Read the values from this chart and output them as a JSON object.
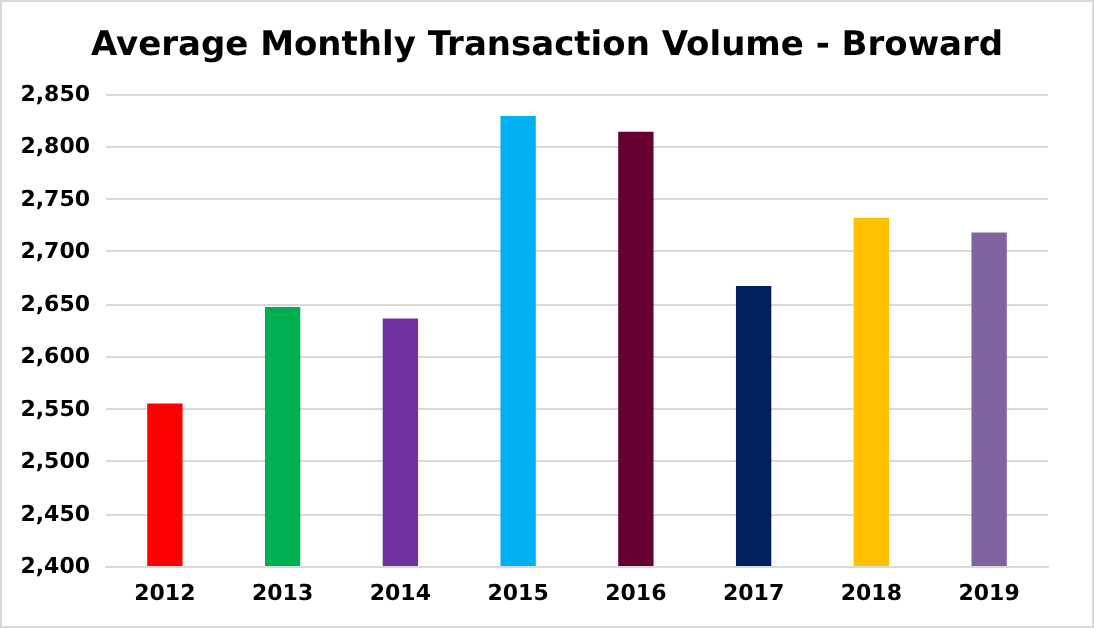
{
  "chart_data": {
    "type": "bar",
    "title": "Average Monthly Transaction Volume - Broward",
    "categories": [
      "2012",
      "2013",
      "2014",
      "2015",
      "2016",
      "2017",
      "2018",
      "2019"
    ],
    "values": [
      2555,
      2647,
      2636,
      2829,
      2814,
      2667,
      2732,
      2718
    ],
    "colors": [
      "#ff0000",
      "#00b050",
      "#7030a0",
      "#00b0f0",
      "#660033",
      "#002060",
      "#ffc000",
      "#8064a2"
    ],
    "ylim": [
      2400,
      2850
    ],
    "yticks": [
      {
        "value": 2400,
        "label": "2,400"
      },
      {
        "value": 2450,
        "label": "2,450"
      },
      {
        "value": 2500,
        "label": "2,500"
      },
      {
        "value": 2550,
        "label": "2,550"
      },
      {
        "value": 2600,
        "label": "2,600"
      },
      {
        "value": 2650,
        "label": "2,650"
      },
      {
        "value": 2700,
        "label": "2,700"
      },
      {
        "value": 2750,
        "label": "2,750"
      },
      {
        "value": 2800,
        "label": "2,800"
      },
      {
        "value": 2850,
        "label": "2,850"
      }
    ],
    "grid": "y"
  }
}
